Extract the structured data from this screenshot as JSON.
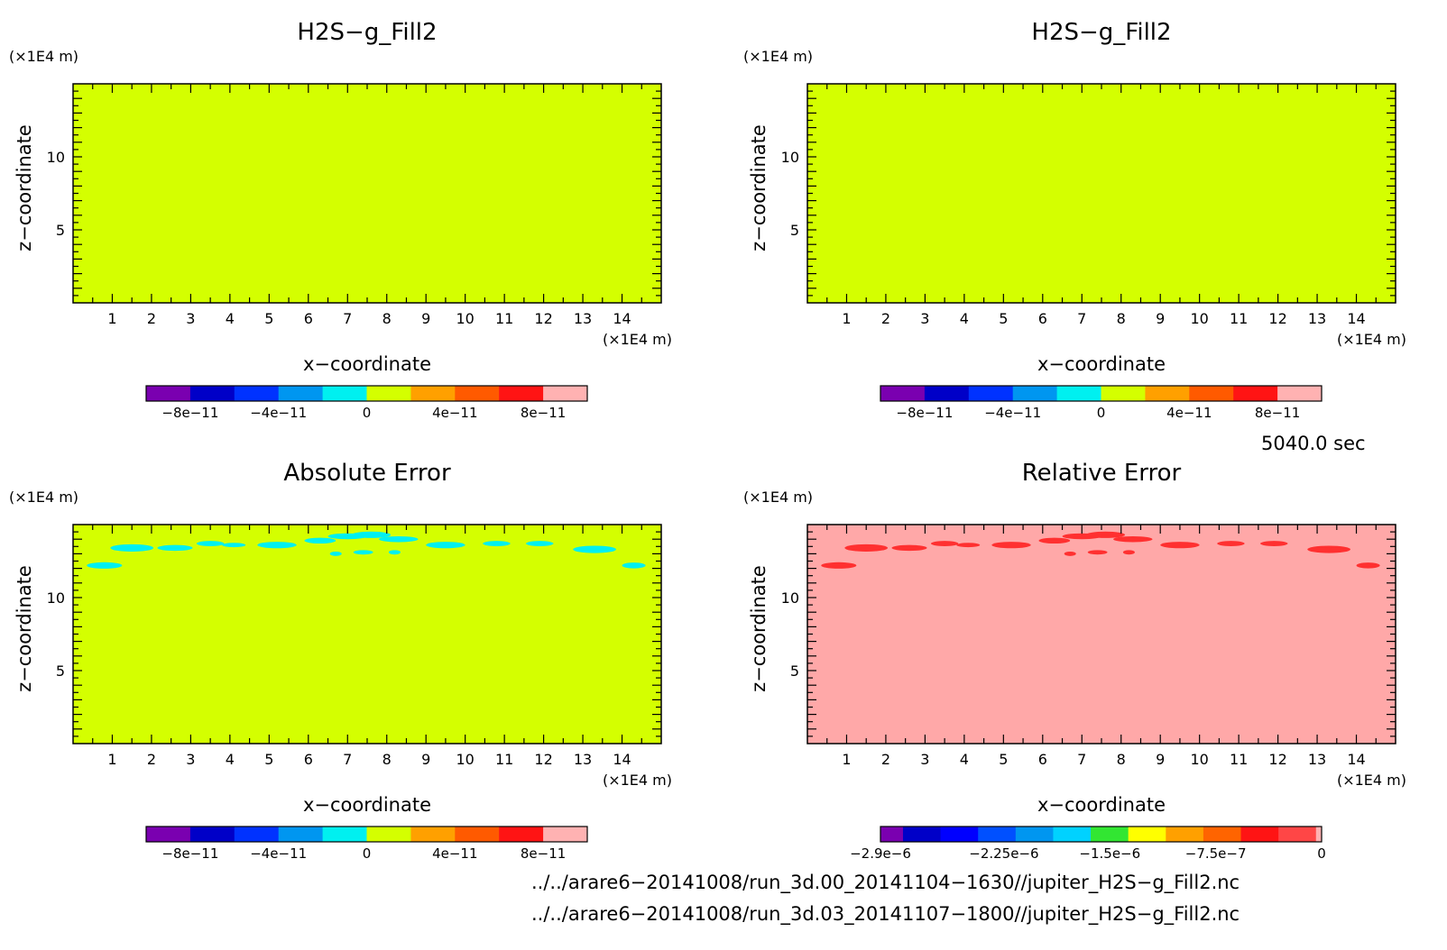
{
  "chart_data": [
    {
      "type": "heatmap",
      "title": "H2S−g_Fill2",
      "xlabel": "x−coordinate",
      "ylabel": "z−coordinate",
      "x_unit": "(×1E4 m)",
      "y_unit": "(×1E4 m)",
      "xlim": [
        0,
        15
      ],
      "ylim": [
        0,
        15
      ],
      "xticks": [
        "1",
        "2",
        "3",
        "4",
        "5",
        "6",
        "7",
        "8",
        "9",
        "10",
        "11",
        "12",
        "13",
        "14"
      ],
      "yticks": [
        "5",
        "10"
      ],
      "field_color": "#d4ff00",
      "features": [],
      "colorbar": {
        "colors": [
          "#7a00b0",
          "#0000c8",
          "#0032ff",
          "#0096f0",
          "#00f0f0",
          "#d4ff00",
          "#ffa000",
          "#ff5a00",
          "#ff1414",
          "#ffb2b2"
        ],
        "labels": [
          "−8e−11",
          "−4e−11",
          "0",
          "4e−11",
          "8e−11"
        ],
        "label_at": [
          1,
          3,
          5,
          7,
          9
        ]
      }
    },
    {
      "type": "heatmap",
      "title": "H2S−g_Fill2",
      "xlabel": "x−coordinate",
      "ylabel": "z−coordinate",
      "x_unit": "(×1E4 m)",
      "y_unit": "(×1E4 m)",
      "xlim": [
        0,
        15
      ],
      "ylim": [
        0,
        15
      ],
      "xticks": [
        "1",
        "2",
        "3",
        "4",
        "5",
        "6",
        "7",
        "8",
        "9",
        "10",
        "11",
        "12",
        "13",
        "14"
      ],
      "yticks": [
        "5",
        "10"
      ],
      "field_color": "#d4ff00",
      "features": [],
      "colorbar": {
        "colors": [
          "#7a00b0",
          "#0000c8",
          "#0032ff",
          "#0096f0",
          "#00f0f0",
          "#d4ff00",
          "#ffa000",
          "#ff5a00",
          "#ff1414",
          "#ffb2b2"
        ],
        "labels": [
          "−8e−11",
          "−4e−11",
          "0",
          "4e−11",
          "8e−11"
        ],
        "label_at": [
          1,
          3,
          5,
          7,
          9
        ]
      }
    },
    {
      "type": "heatmap",
      "title": "Absolute Error",
      "xlabel": "x−coordinate",
      "ylabel": "z−coordinate",
      "x_unit": "(×1E4 m)",
      "y_unit": "(×1E4 m)",
      "xlim": [
        0,
        15
      ],
      "ylim": [
        0,
        15
      ],
      "xticks": [
        "1",
        "2",
        "3",
        "4",
        "5",
        "6",
        "7",
        "8",
        "9",
        "10",
        "11",
        "12",
        "13",
        "14"
      ],
      "yticks": [
        "5",
        "10"
      ],
      "field_color": "#d4ff00",
      "feature_color": "#00f0f0",
      "features": [
        [
          0.8,
          12.2,
          0.45,
          0.22
        ],
        [
          1.5,
          13.4,
          0.55,
          0.25
        ],
        [
          2.6,
          13.4,
          0.45,
          0.2
        ],
        [
          3.5,
          13.7,
          0.35,
          0.18
        ],
        [
          4.1,
          13.6,
          0.3,
          0.15
        ],
        [
          5.2,
          13.6,
          0.5,
          0.22
        ],
        [
          6.3,
          13.9,
          0.4,
          0.2
        ],
        [
          7.0,
          14.2,
          0.5,
          0.2
        ],
        [
          7.6,
          14.3,
          0.5,
          0.22
        ],
        [
          8.3,
          14.0,
          0.5,
          0.2
        ],
        [
          9.5,
          13.6,
          0.5,
          0.22
        ],
        [
          10.8,
          13.7,
          0.35,
          0.18
        ],
        [
          11.9,
          13.7,
          0.35,
          0.18
        ],
        [
          13.3,
          13.3,
          0.55,
          0.25
        ],
        [
          14.3,
          12.2,
          0.3,
          0.2
        ],
        [
          6.7,
          13.0,
          0.15,
          0.15
        ],
        [
          7.4,
          13.1,
          0.25,
          0.15
        ],
        [
          8.2,
          13.1,
          0.15,
          0.15
        ]
      ],
      "colorbar": {
        "colors": [
          "#7a00b0",
          "#0000c8",
          "#0032ff",
          "#0096f0",
          "#00f0f0",
          "#d4ff00",
          "#ffa000",
          "#ff5a00",
          "#ff1414",
          "#ffb2b2"
        ],
        "labels": [
          "−8e−11",
          "−4e−11",
          "0",
          "4e−11",
          "8e−11"
        ],
        "label_at": [
          1,
          3,
          5,
          7,
          9
        ]
      }
    },
    {
      "type": "heatmap",
      "title": "Relative Error",
      "xlabel": "x−coordinate",
      "ylabel": "z−coordinate",
      "x_unit": "(×1E4 m)",
      "y_unit": "(×1E4 m)",
      "xlim": [
        0,
        15
      ],
      "ylim": [
        0,
        15
      ],
      "xticks": [
        "1",
        "2",
        "3",
        "4",
        "5",
        "6",
        "7",
        "8",
        "9",
        "10",
        "11",
        "12",
        "13",
        "14"
      ],
      "yticks": [
        "5",
        "10"
      ],
      "field_color": "#ffa8a8",
      "feature_color": "#ff3030",
      "features": [
        [
          0.8,
          12.2,
          0.45,
          0.22
        ],
        [
          1.5,
          13.4,
          0.55,
          0.25
        ],
        [
          2.6,
          13.4,
          0.45,
          0.2
        ],
        [
          3.5,
          13.7,
          0.35,
          0.18
        ],
        [
          4.1,
          13.6,
          0.3,
          0.15
        ],
        [
          5.2,
          13.6,
          0.5,
          0.22
        ],
        [
          6.3,
          13.9,
          0.4,
          0.2
        ],
        [
          7.0,
          14.2,
          0.5,
          0.2
        ],
        [
          7.6,
          14.3,
          0.5,
          0.22
        ],
        [
          8.3,
          14.0,
          0.5,
          0.2
        ],
        [
          9.5,
          13.6,
          0.5,
          0.22
        ],
        [
          10.8,
          13.7,
          0.35,
          0.18
        ],
        [
          11.9,
          13.7,
          0.35,
          0.18
        ],
        [
          13.3,
          13.3,
          0.55,
          0.25
        ],
        [
          14.3,
          12.2,
          0.3,
          0.2
        ],
        [
          6.7,
          13.0,
          0.15,
          0.15
        ],
        [
          7.4,
          13.1,
          0.25,
          0.15
        ],
        [
          8.2,
          13.1,
          0.15,
          0.15
        ]
      ],
      "colorbar": {
        "colors": [
          "#7a00b0",
          "#0000c8",
          "#0000ff",
          "#0050ff",
          "#0096f0",
          "#00d2ff",
          "#32e632",
          "#ffff00",
          "#ffa000",
          "#ff6400",
          "#ff1414",
          "#ff4646",
          "#ffb2b2"
        ],
        "widths": [
          0.6,
          1,
          1,
          1,
          1,
          1,
          1,
          1,
          1,
          1,
          1,
          1,
          0.15
        ],
        "labels": [
          "−2.9e−6",
          "−2.25e−6",
          "−1.5e−6",
          "−7.5e−7",
          "0"
        ],
        "label_at": [
          0,
          0.28,
          0.52,
          0.76,
          1
        ],
        "label_mode": "fraction"
      }
    }
  ],
  "time_label": "5040.0 sec",
  "files": [
    "../../arare6−20141008/run_3d.00_20141104−1630//jupiter_H2S−g_Fill2.nc",
    "../../arare6−20141008/run_3d.03_20141107−1800//jupiter_H2S−g_Fill2.nc"
  ]
}
